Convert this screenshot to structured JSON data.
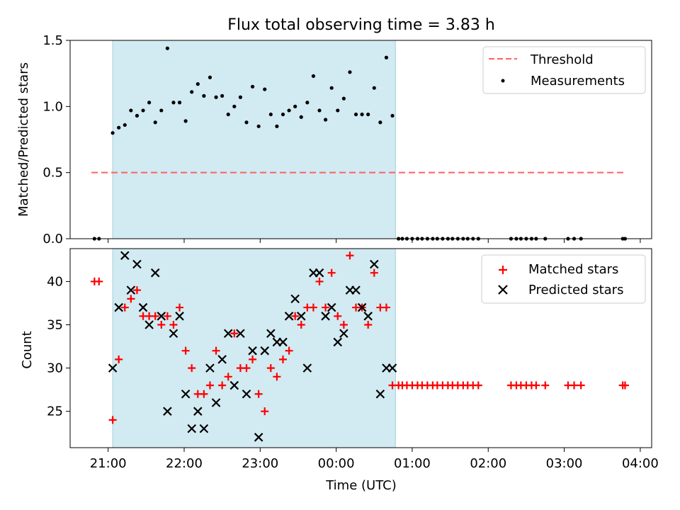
{
  "chart_data": [
    {
      "type": "scatter",
      "title": "Flux total observing time = 3.83 h",
      "xlabel": "",
      "ylabel": "Matched/Predicted stars",
      "ylim": [
        0,
        1.5
      ],
      "yticks": [
        "0.0",
        "0.5",
        "1.0",
        "1.5"
      ],
      "shaded_region_hours": [
        21.06,
        24.78
      ],
      "shaded_color": "#add8e6",
      "legend_position": "upper right",
      "threshold": {
        "name": "Threshold",
        "value": 0.5,
        "x_start": 20.78,
        "x_end": 27.82,
        "color": "#ff6060",
        "style": "dashed"
      },
      "series": [
        {
          "name": "Measurements",
          "marker": "dot",
          "color": "#000000",
          "x": [
            20.82,
            20.88,
            21.06,
            21.14,
            21.22,
            21.3,
            21.38,
            21.46,
            21.54,
            21.62,
            21.7,
            21.78,
            21.86,
            21.94,
            22.02,
            22.1,
            22.18,
            22.26,
            22.34,
            22.42,
            22.5,
            22.58,
            22.66,
            22.74,
            22.82,
            22.9,
            22.98,
            23.06,
            23.14,
            23.22,
            23.3,
            23.38,
            23.46,
            23.54,
            23.62,
            23.7,
            23.78,
            23.86,
            23.94,
            24.02,
            24.1,
            24.18,
            24.26,
            24.34,
            24.42,
            24.5,
            24.58,
            24.66,
            24.74,
            24.82,
            24.87,
            24.93,
            25.0,
            25.07,
            25.13,
            25.2,
            25.27,
            25.33,
            25.4,
            25.47,
            25.53,
            25.6,
            25.67,
            25.73,
            25.8,
            25.87,
            26.3,
            26.37,
            26.43,
            26.5,
            26.57,
            26.63,
            26.75,
            27.05,
            27.13,
            27.22,
            27.77,
            27.8
          ],
          "y": [
            0.0,
            0.0,
            0.8,
            0.84,
            0.86,
            0.97,
            0.93,
            0.97,
            1.03,
            0.88,
            0.97,
            1.44,
            1.03,
            1.03,
            0.89,
            1.11,
            1.17,
            1.08,
            1.22,
            1.07,
            1.08,
            0.94,
            1.0,
            1.07,
            0.88,
            1.15,
            0.85,
            1.13,
            0.94,
            0.85,
            0.94,
            0.97,
            1.0,
            0.92,
            1.03,
            1.23,
            0.97,
            0.9,
            1.14,
            0.97,
            1.06,
            1.26,
            0.94,
            0.94,
            0.94,
            1.14,
            0.88,
            1.37,
            0.93,
            0.0,
            0.0,
            0.0,
            0.0,
            0.0,
            0.0,
            0.0,
            0.0,
            0.0,
            0.0,
            0.0,
            0.0,
            0.0,
            0.0,
            0.0,
            0.0,
            0.0,
            0.0,
            0.0,
            0.0,
            0.0,
            0.0,
            0.0,
            0.0,
            0.0,
            0.0,
            0.0,
            0.0,
            0.0
          ]
        }
      ]
    },
    {
      "type": "scatter",
      "title": "",
      "xlabel": "Time (UTC)",
      "ylabel": "Count",
      "ylim": [
        20.8,
        43.8
      ],
      "yticks": [
        "25",
        "30",
        "35",
        "40"
      ],
      "xlim_hours": [
        20.5,
        28.15
      ],
      "xticks": [
        "21:00",
        "22:00",
        "23:00",
        "00:00",
        "01:00",
        "02:00",
        "03:00",
        "04:00"
      ],
      "shaded_region_hours": [
        21.06,
        24.78
      ],
      "shaded_color": "#add8e6",
      "legend_position": "upper right",
      "series": [
        {
          "name": "Matched stars",
          "marker": "plus",
          "color": "#ff0000",
          "x": [
            20.82,
            20.88,
            21.06,
            21.14,
            21.22,
            21.3,
            21.38,
            21.46,
            21.54,
            21.62,
            21.7,
            21.78,
            21.86,
            21.94,
            22.02,
            22.1,
            22.18,
            22.26,
            22.34,
            22.42,
            22.5,
            22.58,
            22.66,
            22.74,
            22.82,
            22.9,
            22.98,
            23.06,
            23.14,
            23.22,
            23.3,
            23.38,
            23.46,
            23.54,
            23.62,
            23.7,
            23.78,
            23.86,
            23.94,
            24.02,
            24.1,
            24.18,
            24.26,
            24.34,
            24.42,
            24.5,
            24.58,
            24.66,
            24.74,
            24.82,
            24.87,
            24.93,
            25.0,
            25.07,
            25.13,
            25.2,
            25.27,
            25.33,
            25.4,
            25.47,
            25.53,
            25.6,
            25.67,
            25.73,
            25.8,
            25.87,
            26.3,
            26.37,
            26.43,
            26.5,
            26.57,
            26.63,
            26.75,
            27.05,
            27.13,
            27.22,
            27.77,
            27.8
          ],
          "y": [
            40,
            40,
            24,
            31,
            37,
            38,
            39,
            36,
            36,
            36,
            35,
            36,
            35,
            37,
            32,
            30,
            27,
            27,
            28,
            32,
            28,
            29,
            34,
            30,
            30,
            31,
            27,
            25,
            30,
            29,
            31,
            32,
            36,
            35,
            37,
            37,
            40,
            37,
            41,
            36,
            35,
            43,
            37,
            37,
            35,
            41,
            37,
            37,
            28,
            28,
            28,
            28,
            28,
            28,
            28,
            28,
            28,
            28,
            28,
            28,
            28,
            28,
            28,
            28,
            28,
            28,
            28,
            28,
            28,
            28,
            28,
            28,
            28,
            28,
            28,
            28,
            28,
            28
          ]
        },
        {
          "name": "Predicted stars",
          "marker": "x",
          "color": "#000000",
          "x": [
            21.06,
            21.14,
            21.22,
            21.3,
            21.38,
            21.46,
            21.54,
            21.62,
            21.7,
            21.78,
            21.86,
            21.94,
            22.02,
            22.1,
            22.18,
            22.26,
            22.34,
            22.42,
            22.5,
            22.58,
            22.66,
            22.74,
            22.82,
            22.9,
            22.98,
            23.06,
            23.14,
            23.22,
            23.3,
            23.38,
            23.46,
            23.54,
            23.62,
            23.7,
            23.78,
            23.86,
            23.94,
            24.02,
            24.1,
            24.18,
            24.26,
            24.34,
            24.42,
            24.5,
            24.58,
            24.66,
            24.74
          ],
          "y": [
            30,
            37,
            43,
            39,
            42,
            37,
            35,
            41,
            36,
            25,
            34,
            36,
            27,
            23,
            25,
            23,
            30,
            26,
            31,
            34,
            28,
            34,
            27,
            32,
            22,
            32,
            34,
            33,
            33,
            36,
            38,
            36,
            30,
            41,
            41,
            36,
            37,
            33,
            34,
            39,
            39,
            37,
            36,
            42,
            27,
            30,
            30
          ]
        }
      ]
    }
  ]
}
